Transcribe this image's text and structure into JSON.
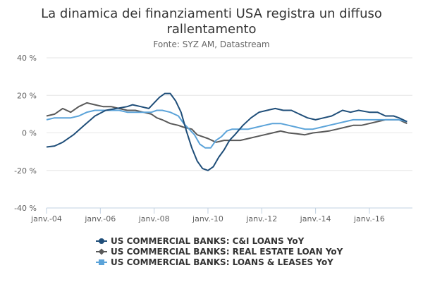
{
  "chart_data": {
    "type": "line",
    "title_lines": [
      "La dinamica dei finanziamenti USA registra un diffuso",
      "rallentamento"
    ],
    "subtitle": "Fonte: SYZ AM, Datastream",
    "ylim": [
      -40,
      40
    ],
    "yticks": [
      -40,
      -20,
      0,
      20,
      40
    ],
    "ytick_labels": [
      "-40 %",
      "-20 %",
      "0 %",
      "20 %",
      "40 %"
    ],
    "xlim": [
      2004.0,
      2017.6
    ],
    "xticks": [
      2004,
      2006,
      2008,
      2010,
      2012,
      2014,
      2016
    ],
    "xtick_labels": [
      "janv.-04",
      "janv.-06",
      "janv.-08",
      "janv.-10",
      "janv.-12",
      "janv.-14",
      "janv.-16"
    ],
    "grid": true,
    "legend_position": "bottom-center",
    "series": [
      {
        "name": "US COMMERCIAL BANKS: C&I LOANS YoY",
        "color": "#1f4e79",
        "marker": "circle",
        "points": [
          [
            2004.0,
            -7.5
          ],
          [
            2004.3,
            -7
          ],
          [
            2004.6,
            -5
          ],
          [
            2005.0,
            -1
          ],
          [
            2005.4,
            4
          ],
          [
            2005.8,
            9
          ],
          [
            2006.2,
            12
          ],
          [
            2006.6,
            13
          ],
          [
            2007.0,
            14
          ],
          [
            2007.2,
            15
          ],
          [
            2007.5,
            14
          ],
          [
            2007.8,
            13
          ],
          [
            2008.0,
            16
          ],
          [
            2008.2,
            19
          ],
          [
            2008.4,
            21
          ],
          [
            2008.6,
            21
          ],
          [
            2008.8,
            17
          ],
          [
            2009.0,
            11
          ],
          [
            2009.2,
            1
          ],
          [
            2009.4,
            -8
          ],
          [
            2009.6,
            -15
          ],
          [
            2009.8,
            -19
          ],
          [
            2010.0,
            -20
          ],
          [
            2010.2,
            -18
          ],
          [
            2010.4,
            -13
          ],
          [
            2010.6,
            -9
          ],
          [
            2010.8,
            -4
          ],
          [
            2011.0,
            -1
          ],
          [
            2011.3,
            4
          ],
          [
            2011.6,
            8
          ],
          [
            2011.9,
            11
          ],
          [
            2012.2,
            12
          ],
          [
            2012.5,
            13
          ],
          [
            2012.8,
            12
          ],
          [
            2013.1,
            12
          ],
          [
            2013.4,
            10
          ],
          [
            2013.7,
            8
          ],
          [
            2014.0,
            7
          ],
          [
            2014.3,
            8
          ],
          [
            2014.6,
            9
          ],
          [
            2015.0,
            12
          ],
          [
            2015.3,
            11
          ],
          [
            2015.6,
            12
          ],
          [
            2016.0,
            11
          ],
          [
            2016.3,
            11
          ],
          [
            2016.6,
            9
          ],
          [
            2016.9,
            9
          ],
          [
            2017.1,
            8
          ],
          [
            2017.4,
            6
          ]
        ]
      },
      {
        "name": "US COMMERCIAL BANKS: REAL ESTATE LOAN YoY",
        "color": "#595959",
        "marker": "diamond",
        "points": [
          [
            2004.0,
            9
          ],
          [
            2004.3,
            10
          ],
          [
            2004.6,
            13
          ],
          [
            2004.9,
            11
          ],
          [
            2005.2,
            14
          ],
          [
            2005.5,
            16
          ],
          [
            2005.8,
            15
          ],
          [
            2006.1,
            14
          ],
          [
            2006.4,
            14
          ],
          [
            2006.7,
            13
          ],
          [
            2007.0,
            12
          ],
          [
            2007.3,
            12
          ],
          [
            2007.6,
            11
          ],
          [
            2007.9,
            10
          ],
          [
            2008.1,
            8
          ],
          [
            2008.3,
            7
          ],
          [
            2008.6,
            5
          ],
          [
            2008.9,
            4
          ],
          [
            2009.1,
            3
          ],
          [
            2009.4,
            2
          ],
          [
            2009.6,
            -1
          ],
          [
            2009.8,
            -2
          ],
          [
            2010.0,
            -3
          ],
          [
            2010.3,
            -5
          ],
          [
            2010.6,
            -4
          ],
          [
            2010.9,
            -4
          ],
          [
            2011.2,
            -4
          ],
          [
            2011.5,
            -3
          ],
          [
            2011.8,
            -2
          ],
          [
            2012.1,
            -1
          ],
          [
            2012.4,
            0
          ],
          [
            2012.7,
            1
          ],
          [
            2013.0,
            0
          ],
          [
            2013.3,
            -0.5
          ],
          [
            2013.6,
            -1
          ],
          [
            2013.9,
            0
          ],
          [
            2014.2,
            0.5
          ],
          [
            2014.5,
            1
          ],
          [
            2014.8,
            2
          ],
          [
            2015.1,
            3
          ],
          [
            2015.4,
            4
          ],
          [
            2015.7,
            4
          ],
          [
            2016.0,
            5
          ],
          [
            2016.3,
            6
          ],
          [
            2016.6,
            7
          ],
          [
            2016.9,
            7
          ],
          [
            2017.1,
            7
          ],
          [
            2017.4,
            5
          ]
        ]
      },
      {
        "name": "US COMMERCIAL BANKS: LOANS & LEASES YoY",
        "color": "#5ba3d9",
        "marker": "square",
        "points": [
          [
            2004.0,
            7
          ],
          [
            2004.3,
            8
          ],
          [
            2004.6,
            8
          ],
          [
            2004.9,
            8
          ],
          [
            2005.2,
            9
          ],
          [
            2005.5,
            11
          ],
          [
            2005.8,
            12
          ],
          [
            2006.1,
            12
          ],
          [
            2006.4,
            12
          ],
          [
            2006.7,
            12
          ],
          [
            2007.0,
            11
          ],
          [
            2007.3,
            11
          ],
          [
            2007.6,
            11
          ],
          [
            2007.9,
            11
          ],
          [
            2008.1,
            12
          ],
          [
            2008.3,
            12
          ],
          [
            2008.6,
            11
          ],
          [
            2008.9,
            9
          ],
          [
            2009.1,
            5
          ],
          [
            2009.3,
            2
          ],
          [
            2009.5,
            -1
          ],
          [
            2009.7,
            -6
          ],
          [
            2009.9,
            -8
          ],
          [
            2010.1,
            -8
          ],
          [
            2010.3,
            -4
          ],
          [
            2010.5,
            -2
          ],
          [
            2010.7,
            1
          ],
          [
            2010.9,
            2
          ],
          [
            2011.2,
            2
          ],
          [
            2011.5,
            2
          ],
          [
            2011.8,
            3
          ],
          [
            2012.1,
            4
          ],
          [
            2012.4,
            5
          ],
          [
            2012.7,
            5
          ],
          [
            2013.0,
            4
          ],
          [
            2013.3,
            3
          ],
          [
            2013.6,
            2
          ],
          [
            2013.9,
            2
          ],
          [
            2014.2,
            3
          ],
          [
            2014.5,
            4
          ],
          [
            2014.8,
            5
          ],
          [
            2015.1,
            6
          ],
          [
            2015.4,
            7
          ],
          [
            2015.7,
            7
          ],
          [
            2016.0,
            7
          ],
          [
            2016.3,
            7
          ],
          [
            2016.6,
            7
          ],
          [
            2016.9,
            7
          ],
          [
            2017.1,
            7
          ],
          [
            2017.4,
            6
          ]
        ]
      }
    ]
  }
}
